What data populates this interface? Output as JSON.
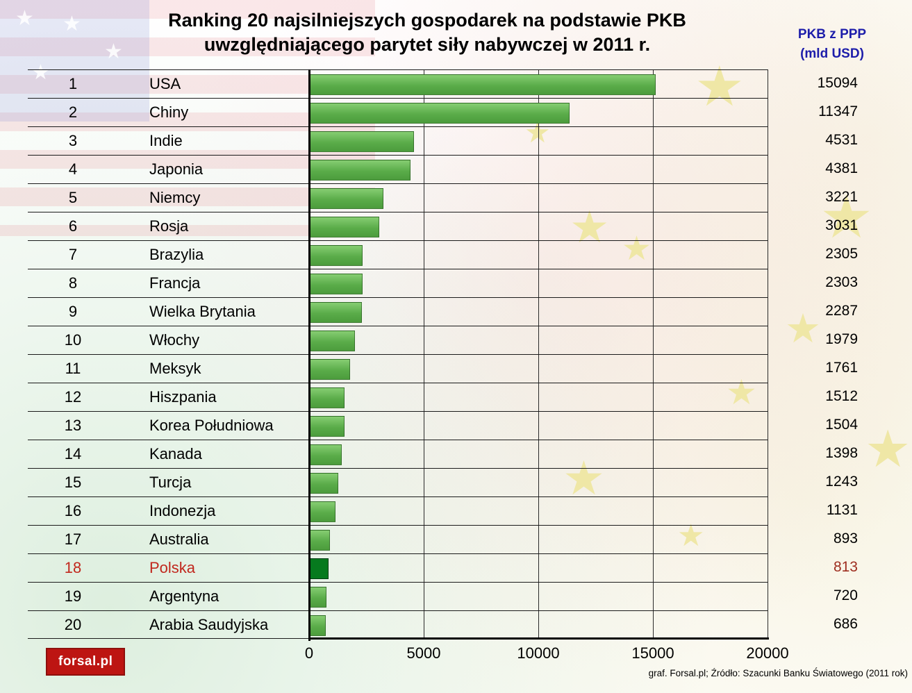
{
  "title": {
    "line1": "Ranking 20 najsilniejszych gospodarek na podstawie PKB",
    "line2": "uwzględniającego parytet siły nabywczej w 2011 r."
  },
  "value_header": {
    "line1": "PKB z PPP",
    "line2": "(mld USD)",
    "color": "#1d1daa"
  },
  "chart_data": {
    "type": "bar",
    "orientation": "horizontal",
    "title": "Ranking 20 najsilniejszych gospodarek na podstawie PKB uwzględniającego parytet siły nabywczej w 2011 r.",
    "value_axis_label": "PKB z PPP (mld USD)",
    "ranks": [
      1,
      2,
      3,
      4,
      5,
      6,
      7,
      8,
      9,
      10,
      11,
      12,
      13,
      14,
      15,
      16,
      17,
      18,
      19,
      20
    ],
    "categories": [
      "USA",
      "Chiny",
      "Indie",
      "Japonia",
      "Niemcy",
      "Rosja",
      "Brazylia",
      "Francja",
      "Wielka Brytania",
      "Włochy",
      "Meksyk",
      "Hiszpania",
      "Korea Południowa",
      "Kanada",
      "Turcja",
      "Indonezja",
      "Australia",
      "Polska",
      "Argentyna",
      "Arabia Saudyjska"
    ],
    "values": [
      15094,
      11347,
      4531,
      4381,
      3221,
      3031,
      2305,
      2303,
      2287,
      1979,
      1761,
      1512,
      1504,
      1398,
      1243,
      1131,
      893,
      813,
      720,
      686
    ],
    "xlim": [
      0,
      20000
    ],
    "x_ticks": [
      0,
      5000,
      10000,
      15000,
      20000
    ],
    "grid": true,
    "bar_color": "#5aac49",
    "bar_color_light": "#86cd72",
    "bar_color_dark": "#4c9c3d",
    "highlight": {
      "index": 17,
      "country": "Polska",
      "text_color": "#c1271d",
      "value_color": "#9e2d1f",
      "bar_color": "#067a1e"
    }
  },
  "footer": {
    "logo_text": "forsal.pl",
    "credit": "graf. Forsal.pl; Źródło: Szacunki Banku Światowego (2011 rok)"
  }
}
